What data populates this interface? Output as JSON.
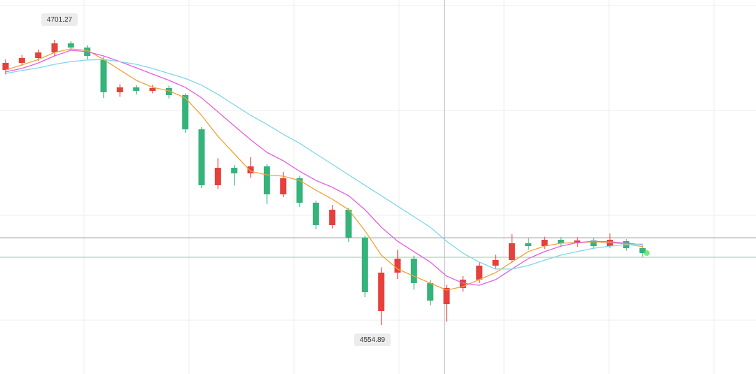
{
  "chart_data": {
    "type": "candlestick",
    "ylim": [
      4529.76,
      4721.72
    ],
    "up_color": "#e5403b",
    "down_color": "#34b37a",
    "open": [
      4685.84,
      4689.43,
      4691.94,
      4694.81,
      4699.47,
      4697.32,
      4691.22,
      4674.36,
      4676.87,
      4675.08,
      4676.51,
      4672.92,
      4655.34,
      4626.64,
      4635.61,
      4632.74,
      4636.33,
      4621.97,
      4630.23,
      4617.67,
      4606.19,
      4614.08,
      4599.73,
      4562.05,
      4581.79,
      4588.96,
      4576.41,
      4565.64,
      4573.9,
      4578.2,
      4585.38,
      4588.25,
      4596.86,
      4595.42,
      4598.65,
      4596.86,
      4598.29,
      4595.42,
      4597.93,
      4594.35
    ],
    "high": [
      4691.2,
      4693.5,
      4696.3,
      4701.27,
      4700.6,
      4698.5,
      4692.5,
      4678.5,
      4678.0,
      4678.2,
      4677.8,
      4673.8,
      4656.5,
      4640.5,
      4637.0,
      4641.0,
      4637.5,
      4633.5,
      4631.5,
      4618.8,
      4616.5,
      4615.0,
      4600.8,
      4584.5,
      4593.5,
      4590.5,
      4578.0,
      4575.5,
      4580.0,
      4587.0,
      4591.0,
      4601.5,
      4599.5,
      4600.2,
      4600.0,
      4600.0,
      4599.6,
      4602.0,
      4599.0,
      4595.8
    ],
    "low": [
      4683.5,
      4688.0,
      4690.5,
      4693.2,
      4695.8,
      4691.2,
      4671.5,
      4672.0,
      4673.2,
      4673.8,
      4671.2,
      4653.5,
      4625.2,
      4624.8,
      4626.5,
      4630.5,
      4617.0,
      4620.5,
      4615.5,
      4604.0,
      4604.5,
      4597.5,
      4569.23,
      4554.89,
      4578.5,
      4573.0,
      4565.0,
      4556.67,
      4572.0,
      4576.5,
      4583.5,
      4586.8,
      4593.5,
      4594.0,
      4595.3,
      4595.0,
      4593.8,
      4594.5,
      4593.0,
      4590.0
    ],
    "close": [
      4689.43,
      4691.94,
      4694.81,
      4699.47,
      4697.32,
      4693.02,
      4674.36,
      4676.87,
      4675.08,
      4676.51,
      4672.92,
      4655.34,
      4626.64,
      4635.61,
      4632.74,
      4636.33,
      4621.97,
      4630.23,
      4617.67,
      4606.19,
      4614.08,
      4599.73,
      4571.74,
      4581.79,
      4588.96,
      4576.41,
      4567.43,
      4573.9,
      4578.2,
      4585.38,
      4588.25,
      4596.86,
      4595.42,
      4598.65,
      4596.86,
      4598.29,
      4595.42,
      4598.65,
      4594.35,
      4591.83
    ],
    "series": [
      {
        "color": "#f2a23a",
        "values": [
          4685.8,
          4688.4,
          4691.2,
          4694.8,
          4696.6,
          4695.9,
          4691.2,
          4685.8,
          4680.5,
          4676.9,
          4675.1,
          4671.5,
          4662.5,
          4651.8,
          4642.8,
          4633.8,
          4632.0,
          4631.3,
          4629.1,
          4624.1,
          4619.5,
          4614.1,
          4603.3,
          4590.8,
          4583.6,
          4580.0,
          4576.4,
          4572.8,
          4574.6,
          4578.2,
          4581.8,
          4587.2,
          4592.6,
          4595.4,
          4596.9,
          4597.2,
          4597.6,
          4597.2,
          4596.5,
          4595.1
        ]
      },
      {
        "color": "#e45ee0",
        "values": [
          4684.8,
          4686.6,
          4689.4,
          4693.0,
          4695.9,
          4695.2,
          4693.0,
          4690.1,
          4686.9,
          4683.7,
          4680.5,
          4676.9,
          4671.5,
          4664.3,
          4657.1,
          4650.0,
          4643.5,
          4639.2,
          4633.8,
          4629.1,
          4625.6,
          4621.3,
          4614.1,
          4605.1,
          4597.9,
          4592.6,
          4587.2,
          4580.0,
          4576.4,
          4575.3,
          4578.2,
          4583.6,
          4589.0,
          4592.6,
          4595.4,
          4597.2,
          4597.9,
          4597.6,
          4596.9,
          4596.1
        ]
      },
      {
        "color": "#7ed6ea",
        "values": [
          4684.0,
          4685.5,
          4686.9,
          4688.7,
          4690.1,
          4690.9,
          4691.2,
          4690.1,
          4688.7,
          4686.6,
          4684.0,
          4681.5,
          4678.0,
          4673.3,
          4667.9,
          4662.5,
          4657.9,
          4652.8,
          4648.2,
          4642.8,
          4637.4,
          4632.0,
          4626.6,
          4621.3,
          4615.9,
          4610.5,
          4605.1,
          4597.9,
          4591.8,
          4587.2,
          4583.6,
          4583.6,
          4585.4,
          4588.2,
          4590.8,
          4592.6,
          4594.3,
          4595.4,
          4596.1,
          4596.5
        ]
      }
    ],
    "price_lines": [
      {
        "value": 4599.7,
        "color": "#9a9a9a"
      },
      {
        "value": 4589.7,
        "color": "#8fd18f"
      }
    ]
  }
}
